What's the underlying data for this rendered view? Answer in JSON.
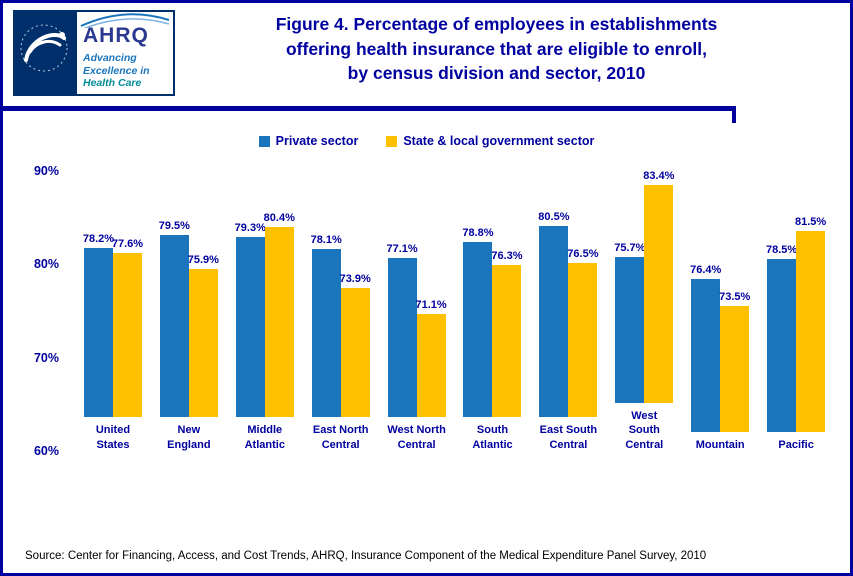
{
  "header": {
    "title_lines": [
      "Figure 4. Percentage of employees in establishments",
      "offering health insurance that are eligible to enroll,",
      "by census division and sector, 2010"
    ],
    "logo": {
      "name": "AHRQ",
      "tagline": [
        "Advancing",
        "Excellence in",
        "Health Care"
      ]
    }
  },
  "colors": {
    "navy": "#0000A0",
    "private_sector": "#1B75BC",
    "government_sector": "#FFC000"
  },
  "chart_data": {
    "type": "bar",
    "categories": [
      "United States",
      "New England",
      "Middle Atlantic",
      "East North Central",
      "West North Central",
      "South Atlantic",
      "East South Central",
      "West South Central",
      "Mountain",
      "Pacific"
    ],
    "series": [
      {
        "name": "Private sector",
        "color": "#1B75BC",
        "values": [
          78.2,
          79.5,
          79.3,
          78.1,
          77.1,
          78.8,
          80.5,
          75.7,
          76.4,
          78.5
        ]
      },
      {
        "name": "State & local government sector",
        "color": "#FFC000",
        "values": [
          77.6,
          75.9,
          80.4,
          73.9,
          71.1,
          76.3,
          76.5,
          83.4,
          73.5,
          81.5
        ]
      }
    ],
    "ylim": [
      60,
      90
    ],
    "yticks": [
      "90%",
      "80%",
      "70%",
      "60%"
    ],
    "value_suffix": "%",
    "grid": false,
    "legend_position": "top"
  },
  "footer": {
    "source": "Source: Center for Financing, Access, and Cost Trends, AHRQ, Insurance Component of the Medical Expenditure Panel Survey, 2010"
  }
}
